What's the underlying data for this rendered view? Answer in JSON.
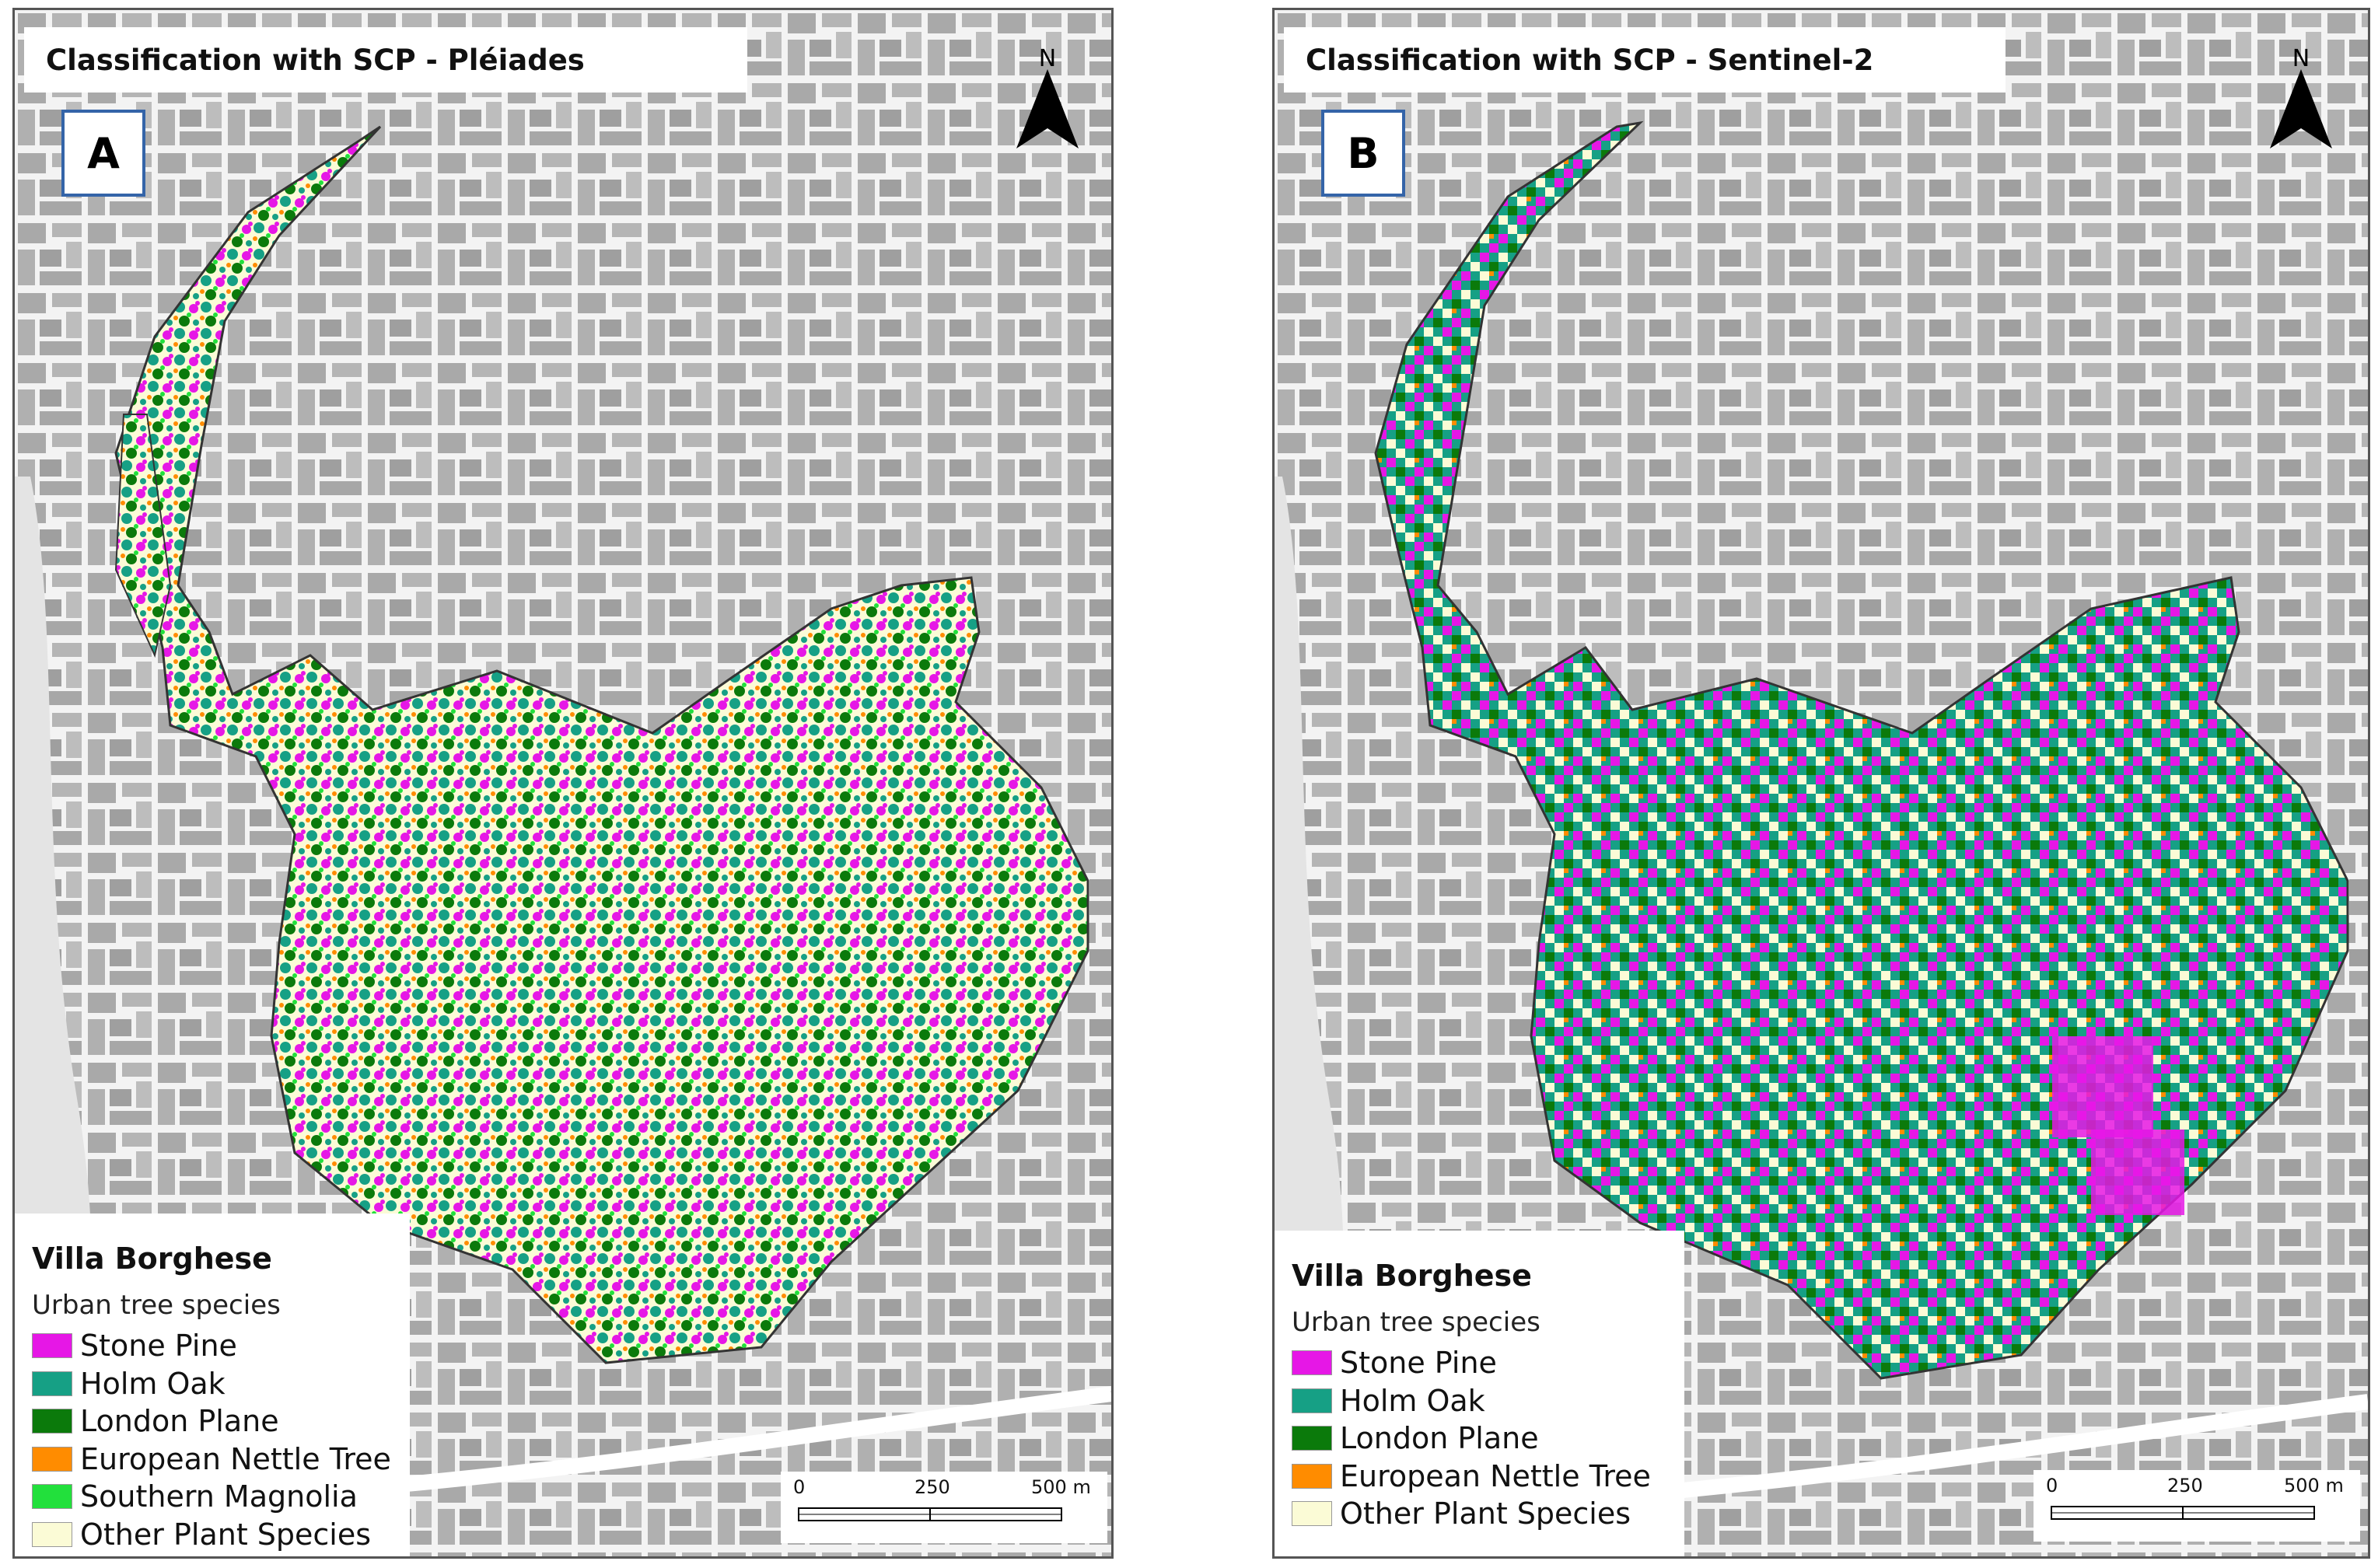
{
  "colors": {
    "stone_pine": "#e617e6",
    "holm_oak": "#16a085",
    "london_plane": "#0b7a0b",
    "european_nettle_tree": "#ff8c00",
    "southern_magnolia": "#22e03c",
    "other_plant_species": "#fbfbd6",
    "basemap_bg": "#cfcfcf",
    "frame_border": "#3464a8"
  },
  "panels": [
    {
      "id": "A",
      "title": "Classification with SCP - Pléiades",
      "letter": "A",
      "north_label": "N",
      "legend": {
        "title": "Villa Borghese",
        "subtitle": "Urban tree species",
        "items": [
          {
            "label": "Stone Pine",
            "color": "#e617e6"
          },
          {
            "label": "Holm Oak",
            "color": "#16a085"
          },
          {
            "label": "London Plane",
            "color": "#0b7a0b"
          },
          {
            "label": "European Nettle Tree",
            "color": "#ff8c00"
          },
          {
            "label": "Southern Magnolia",
            "color": "#22e03c"
          },
          {
            "label": "Other Plant Species",
            "color": "#fbfbd6"
          }
        ]
      },
      "scale": {
        "labels": [
          "0",
          "250",
          "500 m"
        ]
      }
    },
    {
      "id": "B",
      "title": "Classification with SCP - Sentinel-2",
      "letter": "B",
      "north_label": "N",
      "legend": {
        "title": "Villa Borghese",
        "subtitle": "Urban tree species",
        "items": [
          {
            "label": "Stone Pine",
            "color": "#e617e6"
          },
          {
            "label": "Holm Oak",
            "color": "#16a085"
          },
          {
            "label": "London Plane",
            "color": "#0b7a0b"
          },
          {
            "label": "European Nettle Tree",
            "color": "#ff8c00"
          },
          {
            "label": "Other Plant Species",
            "color": "#fbfbd6"
          }
        ]
      },
      "scale": {
        "labels": [
          "0",
          "250",
          "500 m"
        ]
      }
    }
  ]
}
